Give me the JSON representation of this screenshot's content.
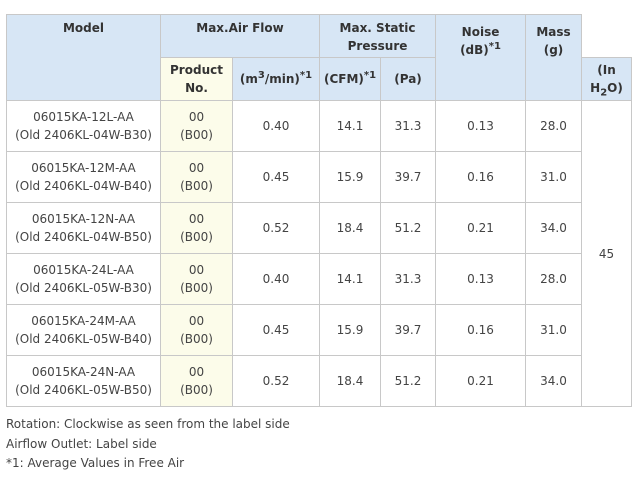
{
  "header": {
    "model": "Model",
    "product_no": [
      "Product",
      "No."
    ],
    "max_air_flow": "Max.Air Flow",
    "air_m3_pre": "(m",
    "air_m3_sup": "3",
    "air_m3_post": "/min)",
    "air_cfm": "(CFM)",
    "note_ref": "*1",
    "max_static_pressure": [
      "Max. Static",
      "Pressure"
    ],
    "pa": "(Pa)",
    "inh2o_pre": "(In H",
    "inh2o_sub": "2",
    "inh2o_post": "O)",
    "noise": "Noise",
    "noise_unit": "(dB)",
    "mass": "Mass",
    "mass_unit": "(g)"
  },
  "rows": [
    {
      "model": "06015KA-12L-AA",
      "old": "(Old 2406KL-04W-B30)",
      "prod": "00",
      "prod_old": "(B00)",
      "m3": "0.40",
      "cfm": "14.1",
      "pa": "31.3",
      "inh2o": "0.13",
      "noise": "28.0"
    },
    {
      "model": "06015KA-12M-AA",
      "old": "(Old 2406KL-04W-B40)",
      "prod": "00",
      "prod_old": "(B00)",
      "m3": "0.45",
      "cfm": "15.9",
      "pa": "39.7",
      "inh2o": "0.16",
      "noise": "31.0"
    },
    {
      "model": "06015KA-12N-AA",
      "old": "(Old 2406KL-04W-B50)",
      "prod": "00",
      "prod_old": "(B00)",
      "m3": "0.52",
      "cfm": "18.4",
      "pa": "51.2",
      "inh2o": "0.21",
      "noise": "34.0"
    },
    {
      "model": "06015KA-24L-AA",
      "old": "(Old 2406KL-05W-B30)",
      "prod": "00",
      "prod_old": "(B00)",
      "m3": "0.40",
      "cfm": "14.1",
      "pa": "31.3",
      "inh2o": "0.13",
      "noise": "28.0"
    },
    {
      "model": "06015KA-24M-AA",
      "old": "(Old 2406KL-05W-B40)",
      "prod": "00",
      "prod_old": "(B00)",
      "m3": "0.45",
      "cfm": "15.9",
      "pa": "39.7",
      "inh2o": "0.16",
      "noise": "31.0"
    },
    {
      "model": "06015KA-24N-AA",
      "old": "(Old 2406KL-05W-B50)",
      "prod": "00",
      "prod_old": "(B00)",
      "m3": "0.52",
      "cfm": "18.4",
      "pa": "51.2",
      "inh2o": "0.21",
      "noise": "34.0"
    }
  ],
  "mass_value": "45",
  "notes": [
    "Rotation: Clockwise as seen from the label side",
    "Airflow Outlet: Label side",
    "*1: Average Values in Free Air"
  ]
}
